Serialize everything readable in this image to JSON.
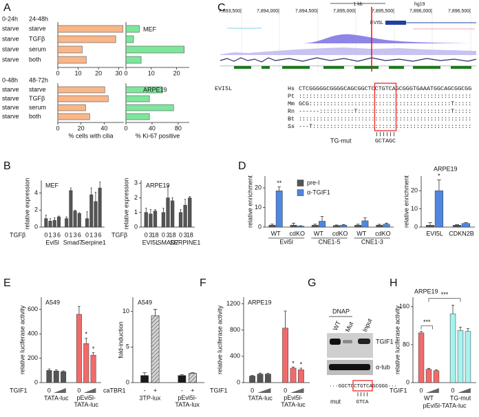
{
  "panel_labels": [
    "A",
    "B",
    "C",
    "D",
    "E",
    "F",
    "G",
    "H"
  ],
  "chart_data": [
    {
      "type": "hbar",
      "column_headers": [
        "0-24h",
        "24-48h"
      ],
      "pretreatment": [
        "starve",
        "starve",
        "starve",
        "starve"
      ],
      "categories": [
        "starve",
        "TGFβ",
        "serum",
        "both"
      ],
      "values": [
        32,
        28.5,
        12,
        14
      ],
      "color": "#f8b689",
      "xlim": [
        0,
        32.5
      ],
      "xticks": [
        0,
        10,
        20,
        30
      ]
    },
    {
      "type": "hbar",
      "title": "MEF",
      "values": [
        5.3,
        3,
        23,
        6
      ],
      "color": "#7de69c",
      "xlim": [
        0,
        25
      ],
      "xticks": [
        0,
        10,
        20
      ]
    },
    {
      "type": "hbar",
      "column_headers": [
        "0-48h",
        "48-72h"
      ],
      "pretreatment": [
        "starve",
        "starve",
        "starve",
        "starve"
      ],
      "categories": [
        "starve",
        "TGFβ",
        "serum",
        "both"
      ],
      "values": [
        40.5,
        43.5,
        24,
        27.5
      ],
      "color": "#f8b689",
      "xlim": [
        0,
        57
      ],
      "xticks": [
        0,
        20,
        40
      ],
      "x_label": "% cells with cilia"
    },
    {
      "type": "hbar",
      "title": "ARPE19",
      "values": [
        56,
        36,
        73,
        36
      ],
      "color": "#7de69c",
      "xlim": [
        0,
        97
      ],
      "xticks": [
        0,
        40,
        80
      ],
      "x_label": "% Ki-67 positive"
    },
    {
      "type": "bar",
      "title": "MEF",
      "y_label": "relative expression",
      "x_label": "TGFβ",
      "categories": [
        "0",
        "1",
        "3",
        "6"
      ],
      "ylim": [
        0,
        5.5
      ],
      "yticks": [
        0,
        2,
        4
      ],
      "series": [
        {
          "name": "Evi5l",
          "color": "#555555",
          "values": [
            1.0,
            0.7,
            0.8,
            1.2
          ],
          "errors": [
            0.4,
            0.3,
            0.3,
            0.1
          ]
        },
        {
          "name": "Smad7",
          "color": "#555555",
          "values": [
            1.0,
            4.3,
            1.9,
            1.6
          ],
          "errors": [
            0.2,
            0.3,
            0.1,
            0.1
          ]
        },
        {
          "name": "Serpine1",
          "color": "#555555",
          "values": [
            1.0,
            3.8,
            3.0,
            4.6
          ],
          "errors": [
            0.8,
            0.8,
            1.1,
            0.7
          ]
        }
      ]
    },
    {
      "type": "bar",
      "title": "ARPE19",
      "y_label": "relative expression",
      "x_label": "TGFβ",
      "categories": [
        "0",
        "3",
        "18"
      ],
      "ylim": [
        0,
        3.2
      ],
      "yticks": [
        0,
        1,
        2,
        3
      ],
      "series": [
        {
          "name": "EVI5L",
          "color": "#555555",
          "values": [
            1.0,
            0.9,
            1.1
          ],
          "errors": [
            0.3,
            0.3,
            0.1
          ]
        },
        {
          "name": "SMAD7",
          "color": "#555555",
          "values": [
            1.0,
            2.0,
            1.8
          ],
          "errors": [
            0.3,
            0.8,
            0.2
          ]
        },
        {
          "name": "SERPINE1",
          "color": "#555555",
          "values": [
            1.0,
            1.5,
            2.0
          ],
          "errors": [
            0.2,
            0.4,
            0.1
          ]
        }
      ]
    },
    {
      "type": "grouped_bar",
      "y_label": "relative enrichment",
      "legend": true,
      "categories": [
        "WT",
        "cdKO",
        "WT",
        "cdKO",
        "WT",
        "cdKO"
      ],
      "groups": [
        "Evi5l",
        "CNE1-5",
        "CNE1-3"
      ],
      "ylim": [
        0,
        26
      ],
      "yticks": [
        0,
        10,
        20
      ],
      "series": [
        {
          "name": "pre-I",
          "color": "#555555",
          "values": [
            1.0,
            1.0,
            1.0,
            0.8,
            1.0,
            1.0
          ],
          "errors": [
            0.5,
            1.0,
            0.5,
            0.3,
            0.5,
            0.4
          ]
        },
        {
          "name": "α-TGIF1",
          "color": "#4f86e0",
          "values": [
            18.5,
            0.5,
            3.0,
            1.0,
            3.2,
            1.5
          ],
          "errors": [
            2.0,
            0.2,
            2.5,
            0.3,
            1.5,
            0.5
          ],
          "annotations": [
            "**",
            null,
            null,
            null,
            null,
            null
          ]
        }
      ]
    },
    {
      "type": "grouped_bar",
      "title": "ARPE19",
      "y_label": "relative enrichment",
      "categories": [
        "EVI5L",
        "CDKN2B"
      ],
      "ylim": [
        0,
        28
      ],
      "yticks": [
        0,
        10,
        20
      ],
      "series": [
        {
          "color": "#555555",
          "values": [
            1.0,
            1.0
          ],
          "errors": [
            1.5,
            0.3
          ]
        },
        {
          "color": "#4f86e0",
          "values": [
            20,
            2.0
          ],
          "errors": [
            6,
            0.5
          ],
          "annotations": [
            "*",
            null
          ]
        }
      ]
    },
    {
      "type": "bar",
      "title": "A549",
      "y_label": "relative luciferase activity",
      "x_label": "TGIF1",
      "categories": [
        "0",
        null,
        null
      ],
      "ylim": [
        0,
        700
      ],
      "yticks": [
        0,
        200,
        400,
        600
      ],
      "series": [
        {
          "name": "TATA-luc",
          "color": "#555555",
          "values": [
            100,
            95,
            90
          ],
          "errors": [
            12,
            10,
            6
          ]
        },
        {
          "name": "pEvi5l-TATA-luc",
          "color": "#f26a6a",
          "values": [
            560,
            320,
            225
          ],
          "errors": [
            65,
            45,
            20
          ],
          "annotations": [
            null,
            "*",
            "*"
          ]
        }
      ]
    },
    {
      "type": "bar",
      "title": "A549",
      "y_label": "fold-induction",
      "x_label": "caTBR1",
      "categories": [
        "-",
        "+"
      ],
      "ylim": [
        0,
        12
      ],
      "yticks": [
        0,
        5,
        10
      ],
      "series": [
        {
          "name": "3TP-lux",
          "colors": [
            "#1a1a1a",
            "#d4d4d4"
          ],
          "hatched": [
            false,
            true
          ],
          "values": [
            1.0,
            9.4
          ],
          "errors": [
            0.4,
            0.9
          ]
        },
        {
          "name": "pEvi5l-TATA-lux",
          "colors": [
            "#1a1a1a",
            "#d4d4d4"
          ],
          "hatched": [
            false,
            true
          ],
          "values": [
            1.0,
            1.3
          ],
          "errors": [
            0.1,
            0.1
          ]
        }
      ]
    },
    {
      "type": "bar",
      "title": "ARPE19",
      "y_label": "relative luciferase activity",
      "x_label": "TGIF1",
      "categories": [
        "0",
        null,
        null
      ],
      "ylim": [
        0,
        1300
      ],
      "yticks": [
        0,
        400,
        800,
        1200
      ],
      "series": [
        {
          "name": "TATA-luc",
          "color": "#555555",
          "values": [
            100,
            130,
            130
          ],
          "errors": [
            8,
            15,
            10
          ]
        },
        {
          "name": "pEvi5l-TATA-luc",
          "color": "#f26a6a",
          "values": [
            830,
            220,
            195
          ],
          "errors": [
            260,
            15,
            25
          ],
          "annotations": [
            null,
            "*",
            "*"
          ]
        }
      ]
    },
    {
      "type": "bar",
      "title": "ARPE19",
      "y_label": "relative luciferase activity",
      "x_label": "TGIF1",
      "x_group_label": "pEvi5l-TATA-luc",
      "categories": [
        "0",
        null,
        null
      ],
      "ylim": [
        0,
        180
      ],
      "yticks": [
        0,
        80,
        160
      ],
      "comparisons": [
        "***",
        "***"
      ],
      "series": [
        {
          "name": "WT",
          "color": "#f26a6a",
          "values": [
            105,
            28,
            25
          ],
          "errors": [
            3,
            2,
            2
          ]
        },
        {
          "name": "TG-mut",
          "color": "#a6f3f0",
          "values": [
            145,
            110,
            108
          ],
          "errors": [
            18,
            7,
            6
          ]
        }
      ]
    }
  ],
  "genome_browser": {
    "coordinates": [
      "7,893,500|",
      "7,894,000|",
      "7,894,500|",
      "7,895,000|",
      "7,895,500|",
      "7,896,000|",
      "7,896,500|"
    ],
    "scale": "1 kb",
    "assembly": "hg19",
    "gene": "EVI5L"
  },
  "alignment": {
    "gene": "EVI5L",
    "species": [
      "Hs",
      "Pt",
      "Mm",
      "Rn",
      "Bt",
      "Ss"
    ],
    "sequences": [
      "CTCGGGGGCGGGGCAGCGGCTCCTGTCAGCGGGTGAAATGGCAGCGGCGG",
      "::::::::::::::::::::::::::::::::::::::::::::::::::",
      "GCG:::::::::::::::::::::::::::::::::::::::::T:::::",
      "------::::::::::T:::::::::::::::::::::::::::T:::::",
      "::::::::::::::::::::::::::::::::::::::::::::::::::",
      "---T::::::::::::::::::::::::::::::::::::::::::::::"
    ],
    "mutation_label": "TG-mut",
    "mutation_sequence": "GCTAGC"
  },
  "blot": {
    "title": "DNAP",
    "lanes": [
      "WT",
      "Mut",
      "Input"
    ],
    "bands": [
      "TGIF1",
      "α-tub"
    ],
    "sequence": "···GGCTCCTGTCAGCGGG···",
    "mutation_label": "mut",
    "mutation_sequence": "GTCA"
  }
}
